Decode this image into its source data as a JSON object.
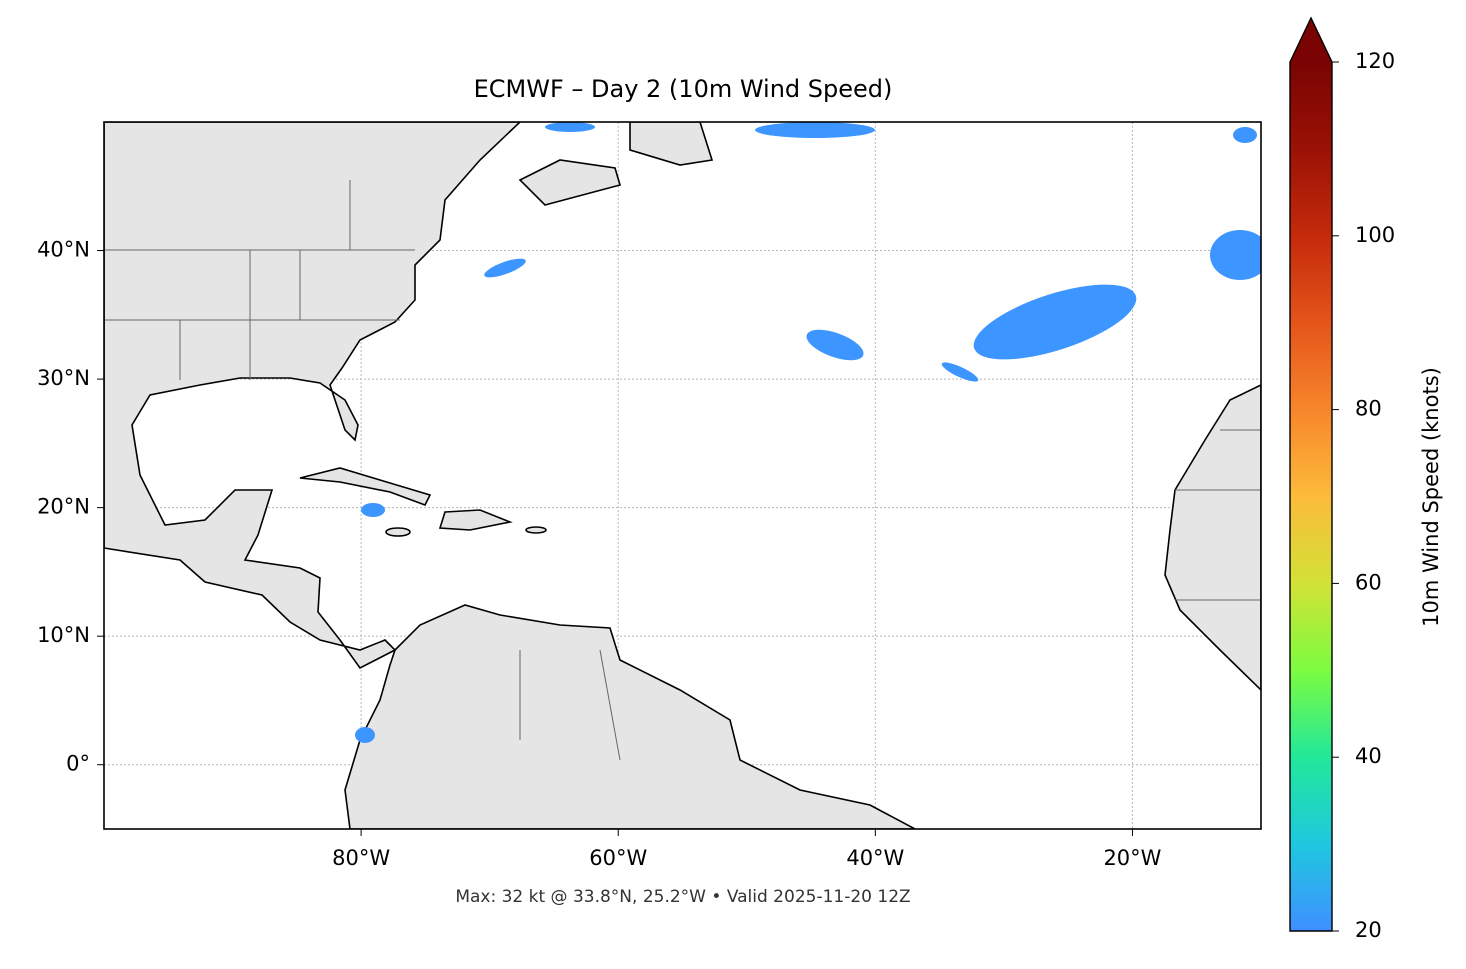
{
  "title": "ECMWF – Day 2 (10m Wind Speed)",
  "map": {
    "lon_range": [
      -100,
      -10
    ],
    "lat_range": [
      -5,
      50
    ],
    "xticks": [
      {
        "value": -80,
        "label": "80°W"
      },
      {
        "value": -60,
        "label": "60°W"
      },
      {
        "value": -40,
        "label": "40°W"
      },
      {
        "value": -20,
        "label": "20°W"
      }
    ],
    "yticks": [
      {
        "value": 0,
        "label": "0°"
      },
      {
        "value": 10,
        "label": "10°N"
      },
      {
        "value": 20,
        "label": "20°N"
      },
      {
        "value": 30,
        "label": "30°N"
      },
      {
        "value": 40,
        "label": "40°N"
      }
    ]
  },
  "colorbar": {
    "label": "10m Wind Speed (knots)",
    "lim": [
      20,
      120
    ],
    "ticks": [
      20,
      40,
      60,
      80,
      100,
      120
    ]
  },
  "footer": "Max: 32 kt @ 33.8°N, 25.2°W • Valid 2025-11-20 12Z"
}
